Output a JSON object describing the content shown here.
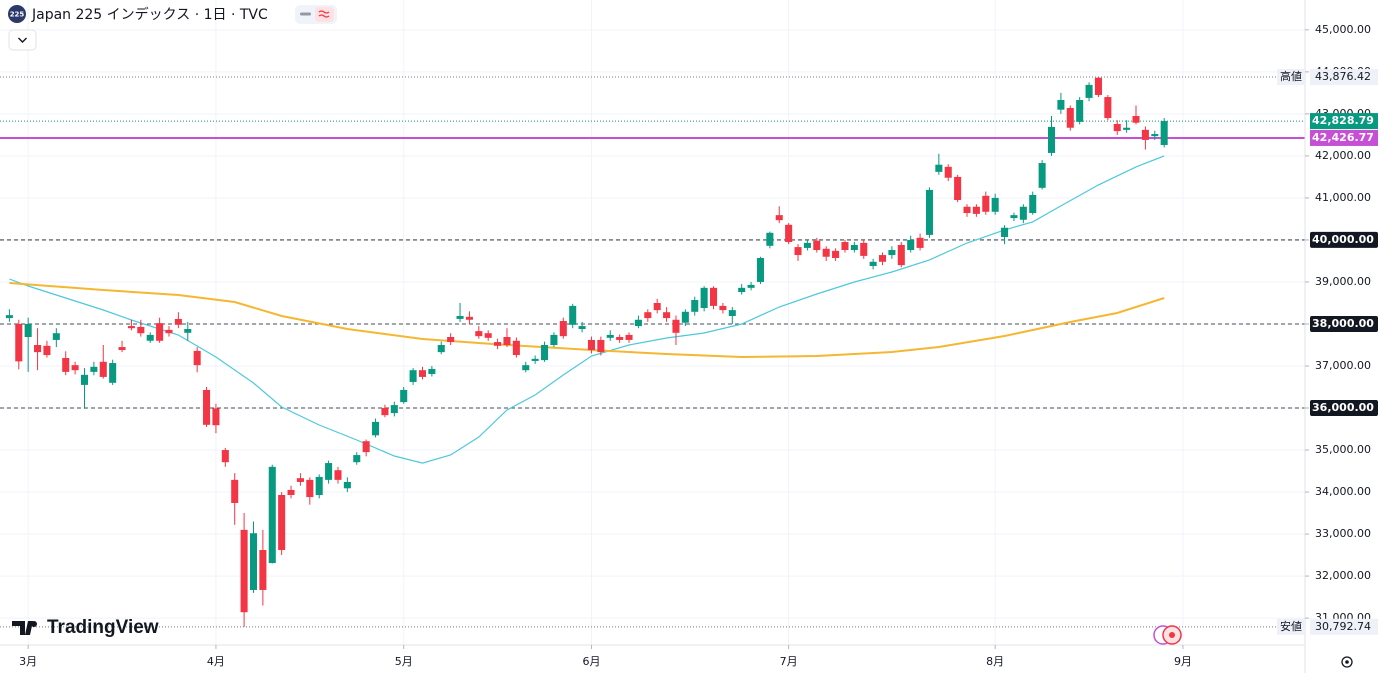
{
  "header": {
    "symbol_icon": "225",
    "title": "Japan 225 インデックス · 1日 · TVC"
  },
  "logo": "TradingView",
  "chart_data": {
    "type": "candlestick",
    "up_color": "#089981",
    "down_color": "#f23645",
    "candles": [
      [
        38140,
        38350,
        38050,
        38210
      ],
      [
        38000,
        38100,
        36920,
        37110
      ],
      [
        37690,
        38150,
        36860,
        38000
      ],
      [
        37500,
        37900,
        36900,
        37330
      ],
      [
        37480,
        37600,
        37200,
        37260
      ],
      [
        37620,
        37900,
        37450,
        37780
      ],
      [
        37190,
        37350,
        36780,
        36860
      ],
      [
        37020,
        37100,
        36800,
        36900
      ],
      [
        36550,
        36950,
        35980,
        36790
      ],
      [
        36860,
        37100,
        36780,
        36980
      ],
      [
        37100,
        37500,
        36700,
        36740
      ],
      [
        36600,
        37150,
        36550,
        37070
      ],
      [
        37450,
        37600,
        37330,
        37380
      ],
      [
        37950,
        38100,
        37850,
        37900
      ],
      [
        37930,
        38100,
        37700,
        37780
      ],
      [
        37600,
        37800,
        37550,
        37740
      ],
      [
        38020,
        38150,
        37550,
        37600
      ],
      [
        37860,
        37950,
        37700,
        37780
      ],
      [
        38120,
        38280,
        37900,
        37980
      ],
      [
        37790,
        38050,
        37600,
        37880
      ],
      [
        37360,
        37450,
        36850,
        37020
      ],
      [
        36430,
        36500,
        35550,
        35600
      ],
      [
        35990,
        36100,
        35400,
        35590
      ],
      [
        35000,
        35050,
        34600,
        34710
      ],
      [
        34290,
        34450,
        33220,
        33740
      ],
      [
        33100,
        33500,
        30792.74,
        31140
      ],
      [
        31670,
        33300,
        31600,
        33020
      ],
      [
        32620,
        33100,
        31300,
        31670
      ],
      [
        32310,
        34650,
        32300,
        34600
      ],
      [
        33930,
        34000,
        32500,
        32620
      ],
      [
        34050,
        34150,
        33850,
        33930
      ],
      [
        34330,
        34450,
        34150,
        34240
      ],
      [
        34290,
        34350,
        33700,
        33880
      ],
      [
        33930,
        34420,
        33850,
        34360
      ],
      [
        34290,
        34750,
        34200,
        34690
      ],
      [
        34520,
        34600,
        34200,
        34290
      ],
      [
        34090,
        34350,
        34000,
        34240
      ],
      [
        34710,
        34950,
        34650,
        34880
      ],
      [
        35210,
        35250,
        34850,
        34950
      ],
      [
        35350,
        35750,
        35300,
        35670
      ],
      [
        36000,
        36080,
        35780,
        35830
      ],
      [
        35880,
        36150,
        35800,
        36070
      ],
      [
        36140,
        36500,
        36100,
        36430
      ],
      [
        36620,
        36950,
        36550,
        36900
      ],
      [
        36900,
        36980,
        36680,
        36740
      ],
      [
        36810,
        37000,
        36750,
        36930
      ],
      [
        37330,
        37580,
        37280,
        37500
      ],
      [
        37690,
        37780,
        37500,
        37570
      ],
      [
        38120,
        38500,
        38050,
        38190
      ],
      [
        38170,
        38300,
        38000,
        38100
      ],
      [
        37830,
        37950,
        37650,
        37710
      ],
      [
        37780,
        37850,
        37600,
        37670
      ],
      [
        37570,
        37650,
        37400,
        37480
      ],
      [
        37690,
        37900,
        37450,
        37500
      ],
      [
        37600,
        37680,
        37200,
        37260
      ],
      [
        36900,
        37100,
        36850,
        37020
      ],
      [
        37120,
        37250,
        37050,
        37170
      ],
      [
        37140,
        37580,
        37100,
        37500
      ],
      [
        37500,
        37800,
        37450,
        37740
      ],
      [
        38070,
        38150,
        37650,
        37710
      ],
      [
        37980,
        38480,
        37900,
        38430
      ],
      [
        37880,
        38050,
        37800,
        37950
      ],
      [
        37620,
        37700,
        37300,
        37380
      ],
      [
        37620,
        37700,
        37250,
        37330
      ],
      [
        37670,
        37850,
        37600,
        37740
      ],
      [
        37690,
        37750,
        37550,
        37620
      ],
      [
        37740,
        37800,
        37550,
        37620
      ],
      [
        37950,
        38200,
        37900,
        38100
      ],
      [
        38280,
        38350,
        38050,
        38140
      ],
      [
        38500,
        38600,
        38250,
        38330
      ],
      [
        38280,
        38400,
        38050,
        38140
      ],
      [
        38100,
        38200,
        37500,
        37790
      ],
      [
        38030,
        38350,
        37950,
        38290
      ],
      [
        38290,
        38650,
        38200,
        38570
      ],
      [
        38380,
        38900,
        38300,
        38860
      ],
      [
        38860,
        38900,
        38350,
        38430
      ],
      [
        38430,
        38500,
        38250,
        38330
      ],
      [
        38190,
        38400,
        38000,
        38330
      ],
      [
        38760,
        38950,
        38700,
        38860
      ],
      [
        38860,
        39000,
        38800,
        38930
      ],
      [
        39000,
        39600,
        38950,
        39570
      ],
      [
        39860,
        40200,
        39800,
        40170
      ],
      [
        40590,
        40800,
        40400,
        40470
      ],
      [
        40360,
        40400,
        39900,
        39950
      ],
      [
        39830,
        39900,
        39500,
        39640
      ],
      [
        39810,
        40000,
        39750,
        39930
      ],
      [
        39980,
        40050,
        39700,
        39760
      ],
      [
        39790,
        39850,
        39500,
        39600
      ],
      [
        39740,
        39800,
        39500,
        39570
      ],
      [
        39950,
        40000,
        39700,
        39760
      ],
      [
        39760,
        39950,
        39700,
        39880
      ],
      [
        39930,
        40000,
        39550,
        39620
      ],
      [
        39380,
        39550,
        39300,
        39480
      ],
      [
        39640,
        39700,
        39400,
        39480
      ],
      [
        39640,
        39850,
        39550,
        39760
      ],
      [
        39880,
        39950,
        39350,
        39400
      ],
      [
        39760,
        40100,
        39700,
        40000
      ],
      [
        40050,
        40150,
        39750,
        39810
      ],
      [
        40120,
        41250,
        40050,
        41190
      ],
      [
        41620,
        42050,
        41550,
        41790
      ],
      [
        41740,
        41800,
        41400,
        41480
      ],
      [
        41500,
        41550,
        40900,
        40950
      ],
      [
        40790,
        40850,
        40550,
        40640
      ],
      [
        40790,
        40850,
        40550,
        40620
      ],
      [
        41050,
        41150,
        40600,
        40670
      ],
      [
        40670,
        41100,
        40600,
        41000
      ],
      [
        40070,
        40350,
        39900,
        40290
      ],
      [
        40520,
        40650,
        40450,
        40590
      ],
      [
        40480,
        40850,
        40400,
        40790
      ],
      [
        40640,
        41150,
        40600,
        41070
      ],
      [
        41240,
        41900,
        41200,
        41830
      ],
      [
        42070,
        42950,
        42000,
        42690
      ],
      [
        43100,
        43500,
        43000,
        43330
      ],
      [
        43140,
        43200,
        42600,
        42670
      ],
      [
        42810,
        43400,
        42750,
        43330
      ],
      [
        43380,
        43750,
        43300,
        43690
      ],
      [
        43860,
        43876.42,
        43400,
        43450
      ],
      [
        43400,
        43450,
        42850,
        42900
      ],
      [
        42760,
        42850,
        42500,
        42590
      ],
      [
        42620,
        42850,
        42550,
        42670
      ],
      [
        42950,
        43200,
        42750,
        42790
      ],
      [
        42620,
        42700,
        42150,
        42380
      ],
      [
        42470,
        42600,
        42380,
        42520
      ],
      [
        42260,
        42900,
        42200,
        42828.79
      ]
    ],
    "ma_lines": [
      {
        "color": "#4dc9dc",
        "x": [
          0,
          2,
          5,
          10,
          13,
          18,
          22,
          26,
          29,
          33,
          37,
          41,
          44,
          47,
          50,
          53,
          56,
          59,
          62,
          66,
          70,
          74,
          78,
          82,
          86,
          90,
          94,
          98,
          102,
          106,
          109,
          112,
          116,
          120,
          123
        ],
        "values": [
          39071,
          38904,
          38690,
          38333,
          38095,
          37738,
          37214,
          36595,
          36023,
          35595,
          35238,
          34857,
          34690,
          34881,
          35310,
          35952,
          36309,
          36785,
          37238,
          37500,
          37666,
          37785,
          38000,
          38404,
          38714,
          39000,
          39238,
          39524,
          39928,
          40238,
          40428,
          40809,
          41309,
          41738,
          42000
        ]
      },
      {
        "color": "#f5b731",
        "x": [
          0,
          10,
          18,
          24,
          29,
          36,
          44,
          53,
          62,
          70,
          78,
          86,
          94,
          99,
          106,
          113,
          118,
          123
        ],
        "values": [
          38976,
          38809,
          38690,
          38524,
          38190,
          37880,
          37642,
          37500,
          37380,
          37285,
          37214,
          37238,
          37333,
          37452,
          37714,
          38047,
          38261,
          38619
        ]
      }
    ],
    "xlim": [
      -1,
      138
    ],
    "xticks": [
      {
        "value": 2,
        "label": "3月"
      },
      {
        "value": 22,
        "label": "4月"
      },
      {
        "value": 42,
        "label": "5月"
      },
      {
        "value": 62,
        "label": "6月"
      },
      {
        "value": 83,
        "label": "7月"
      },
      {
        "value": 105,
        "label": "8月"
      },
      {
        "value": 125,
        "label": "9月"
      }
    ],
    "ylim": [
      30360,
      45710
    ],
    "yticks": [
      {
        "value": 31000,
        "label": "31,000.00"
      },
      {
        "value": 32000,
        "label": "32,000.00"
      },
      {
        "value": 33000,
        "label": "33,000.00"
      },
      {
        "value": 34000,
        "label": "34,000.00"
      },
      {
        "value": 35000,
        "label": "35,000.00"
      },
      {
        "value": 36000,
        "label": "36,000.00"
      },
      {
        "value": 37000,
        "label": "37,000.00"
      },
      {
        "value": 38000,
        "label": "38,000.00"
      },
      {
        "value": 39000,
        "label": "39,000.00"
      },
      {
        "value": 40000,
        "label": "40,000.00"
      },
      {
        "value": 41000,
        "label": "41,000.00"
      },
      {
        "value": 42000,
        "label": "42,000.00"
      },
      {
        "value": 43000,
        "label": "43,000.00"
      },
      {
        "value": 44000,
        "label": "44,000.00"
      },
      {
        "value": 45000,
        "label": "45,000.00"
      }
    ],
    "levels": [
      {
        "value": 40000,
        "label": "40,000.00"
      },
      {
        "value": 38000,
        "label": "38,000.00"
      },
      {
        "value": 36000,
        "label": "36,000.00"
      }
    ],
    "high": {
      "name": "高値",
      "value": 43876.42,
      "label": "43,876.42"
    },
    "low": {
      "name": "安値",
      "value": 30792.74,
      "label": "30,792.74"
    },
    "last": {
      "value": 42828.79,
      "label": "42,828.79",
      "color": "#089981"
    },
    "line": {
      "value": 42426.77,
      "label": "42,426.77",
      "color": "#c64fd6"
    },
    "grid": true
  }
}
